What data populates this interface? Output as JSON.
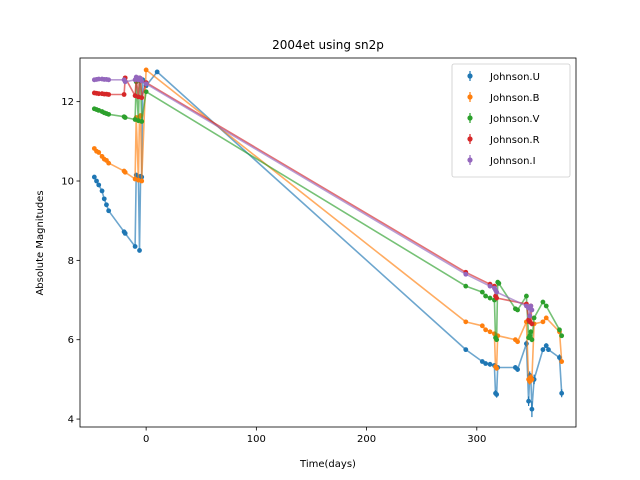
{
  "chart_data": {
    "type": "line",
    "title": "2004et using sn2p",
    "xlabel": "Time(days)",
    "ylabel": "Absolute Magnitudes",
    "xlim": [
      -60,
      390
    ],
    "ylim": [
      3.8,
      13.1
    ],
    "xticks": [
      0,
      100,
      200,
      300
    ],
    "yticks": [
      4,
      6,
      8,
      10,
      12
    ],
    "grid": false,
    "legend_position": "top-right",
    "colors": {
      "Johnson.U": "#1f77b4",
      "Johnson.B": "#ff7f0e",
      "Johnson.V": "#2ca02c",
      "Johnson.R": "#d62728",
      "Johnson.I": "#9467bd"
    },
    "series": [
      {
        "name": "Johnson.U",
        "x": [
          -47,
          -45,
          -43,
          -40,
          -38,
          -36,
          -34,
          -20,
          -19,
          -10,
          -9,
          -7,
          -6,
          -5,
          -4,
          -3,
          0,
          10,
          290,
          305,
          308,
          312,
          316,
          317,
          318,
          319,
          335,
          337,
          345,
          347,
          348,
          349,
          350,
          352,
          360,
          363,
          365,
          375,
          377
        ],
        "y": [
          10.1,
          10.0,
          9.9,
          9.75,
          9.55,
          9.4,
          9.25,
          8.72,
          8.68,
          8.35,
          10.15,
          10.1,
          8.25,
          10.12,
          10.1,
          12.55,
          12.4,
          12.75,
          5.75,
          5.45,
          5.4,
          5.38,
          5.35,
          4.65,
          4.62,
          5.3,
          5.3,
          5.25,
          5.9,
          4.45,
          5.1,
          5.05,
          4.25,
          5.0,
          5.75,
          5.85,
          5.75,
          5.55,
          4.65
        ],
        "err": [
          0.03,
          0.03,
          0.03,
          0.03,
          0.04,
          0.03,
          0.03,
          0.03,
          0.03,
          0.03,
          0.03,
          0.03,
          0.03,
          0.03,
          0.03,
          0.05,
          0.04,
          0.05,
          0.05,
          0.05,
          0.05,
          0.06,
          0.06,
          0.08,
          0.08,
          0.06,
          0.06,
          0.06,
          0.08,
          0.12,
          0.1,
          0.1,
          0.2,
          0.12,
          0.06,
          0.06,
          0.06,
          0.08,
          0.1
        ]
      },
      {
        "name": "Johnson.B",
        "x": [
          -47,
          -45,
          -43,
          -40,
          -38,
          -36,
          -34,
          -20,
          -19,
          -10,
          -9,
          -7,
          -6,
          -5,
          -4,
          0,
          290,
          305,
          308,
          312,
          316,
          317,
          318,
          319,
          335,
          337,
          345,
          347,
          348,
          349,
          350,
          352,
          360,
          363,
          375,
          377
        ],
        "y": [
          10.82,
          10.75,
          10.72,
          10.62,
          10.55,
          10.52,
          10.45,
          10.25,
          10.22,
          10.05,
          11.6,
          10.02,
          11.62,
          11.65,
          10.0,
          12.8,
          6.45,
          6.35,
          6.25,
          6.2,
          6.15,
          5.32,
          5.28,
          6.1,
          6.0,
          5.95,
          6.45,
          5.0,
          4.95,
          5.05,
          5.0,
          6.4,
          6.45,
          6.55,
          6.2,
          5.45
        ],
        "err": [
          0.03,
          0.03,
          0.03,
          0.03,
          0.03,
          0.03,
          0.03,
          0.03,
          0.03,
          0.03,
          0.03,
          0.03,
          0.03,
          0.03,
          0.03,
          0.04,
          0.04,
          0.04,
          0.04,
          0.04,
          0.04,
          0.06,
          0.06,
          0.05,
          0.05,
          0.05,
          0.06,
          0.08,
          0.08,
          0.08,
          0.08,
          0.05,
          0.05,
          0.05,
          0.05,
          0.06
        ]
      },
      {
        "name": "Johnson.V",
        "x": [
          -47,
          -45,
          -43,
          -40,
          -38,
          -36,
          -34,
          -20,
          -19,
          -10,
          -9,
          -7,
          -6,
          -5,
          -4,
          0,
          290,
          305,
          308,
          312,
          316,
          317,
          318,
          319,
          320,
          335,
          337,
          345,
          347,
          348,
          349,
          350,
          352,
          360,
          363,
          375,
          377
        ],
        "y": [
          11.82,
          11.8,
          11.78,
          11.75,
          11.72,
          11.7,
          11.68,
          11.62,
          11.6,
          11.55,
          12.5,
          11.52,
          12.55,
          12.52,
          11.5,
          12.25,
          7.35,
          7.2,
          7.1,
          7.05,
          7.0,
          6.05,
          6.0,
          7.45,
          7.42,
          6.78,
          6.75,
          7.1,
          6.05,
          6.1,
          6.2,
          6.0,
          6.55,
          6.95,
          6.85,
          6.25,
          6.1
        ],
        "err": [
          0.03,
          0.03,
          0.03,
          0.03,
          0.03,
          0.03,
          0.03,
          0.03,
          0.03,
          0.03,
          0.03,
          0.03,
          0.03,
          0.03,
          0.03,
          0.03,
          0.03,
          0.03,
          0.03,
          0.03,
          0.03,
          0.05,
          0.05,
          0.04,
          0.04,
          0.04,
          0.04,
          0.05,
          0.06,
          0.06,
          0.06,
          0.06,
          0.05,
          0.04,
          0.04,
          0.04,
          0.04
        ]
      },
      {
        "name": "Johnson.R",
        "x": [
          -47,
          -45,
          -43,
          -40,
          -38,
          -36,
          -34,
          -20,
          -19,
          -10,
          -9,
          -7,
          -6,
          -5,
          -4,
          0,
          290,
          312,
          316,
          317,
          318,
          345,
          347,
          348,
          349,
          350
        ],
        "y": [
          12.22,
          12.21,
          12.2,
          12.2,
          12.19,
          12.19,
          12.18,
          12.18,
          12.6,
          12.15,
          12.58,
          12.12,
          12.6,
          12.58,
          12.1,
          12.48,
          7.7,
          7.4,
          7.35,
          7.1,
          7.05,
          6.9,
          6.5,
          6.45,
          6.85,
          6.4
        ],
        "err": [
          0.03,
          0.03,
          0.03,
          0.03,
          0.03,
          0.03,
          0.03,
          0.03,
          0.03,
          0.03,
          0.03,
          0.03,
          0.03,
          0.03,
          0.03,
          0.03,
          0.03,
          0.04,
          0.04,
          0.05,
          0.05,
          0.05,
          0.06,
          0.06,
          0.05,
          0.06
        ]
      },
      {
        "name": "Johnson.I",
        "x": [
          -47,
          -45,
          -43,
          -40,
          -38,
          -36,
          -34,
          -20,
          -19,
          -10,
          -9,
          -7,
          -6,
          -5,
          -4,
          0,
          290,
          312,
          316,
          317,
          318,
          345,
          347,
          348,
          349,
          350
        ],
        "y": [
          12.55,
          12.56,
          12.57,
          12.57,
          12.56,
          12.56,
          12.55,
          12.55,
          12.5,
          12.55,
          12.62,
          12.55,
          12.6,
          12.58,
          12.52,
          12.45,
          7.65,
          7.35,
          7.3,
          7.25,
          7.2,
          6.85,
          6.8,
          6.6,
          6.85,
          6.75
        ],
        "err": [
          0.03,
          0.03,
          0.03,
          0.03,
          0.03,
          0.03,
          0.03,
          0.03,
          0.03,
          0.03,
          0.03,
          0.03,
          0.03,
          0.03,
          0.03,
          0.03,
          0.03,
          0.04,
          0.04,
          0.05,
          0.05,
          0.05,
          0.06,
          0.06,
          0.05,
          0.06
        ]
      }
    ]
  }
}
